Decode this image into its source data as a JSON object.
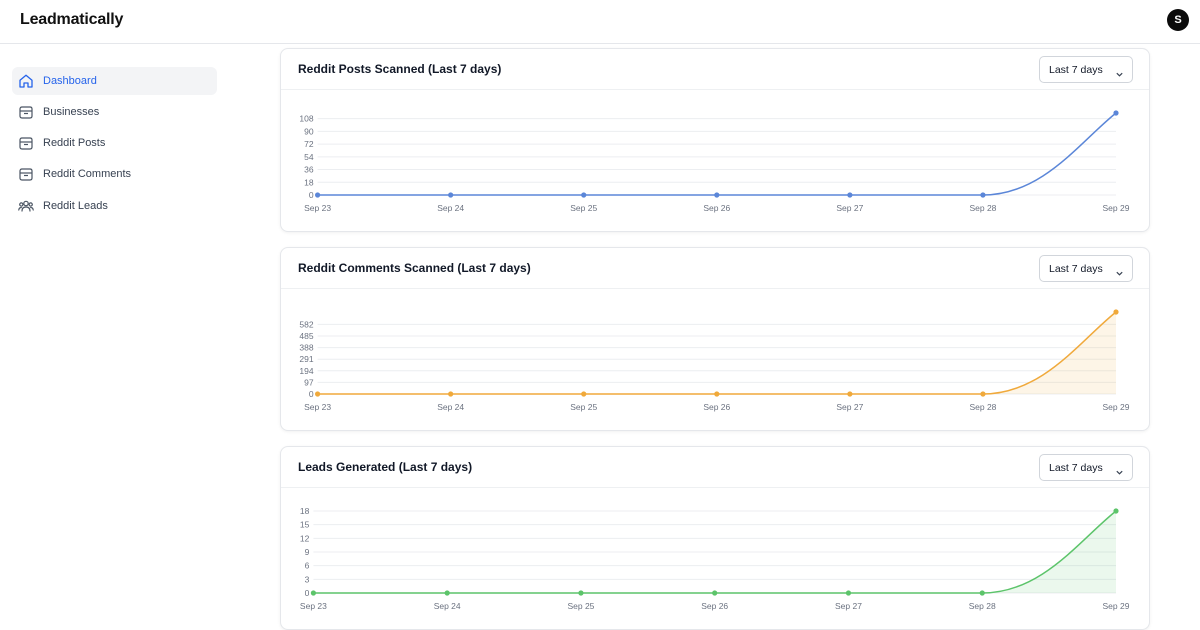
{
  "app": {
    "title": "Leadmatically",
    "avatar_initial": "S"
  },
  "sidebar": {
    "items": [
      {
        "label": "Dashboard",
        "icon": "home-icon",
        "active": true
      },
      {
        "label": "Businesses",
        "icon": "box-icon",
        "active": false
      },
      {
        "label": "Reddit Posts",
        "icon": "box-icon",
        "active": false
      },
      {
        "label": "Reddit Comments",
        "icon": "box-icon",
        "active": false
      },
      {
        "label": "Reddit Leads",
        "icon": "users-icon",
        "active": false
      }
    ]
  },
  "colors": {
    "accent": "#2563eb",
    "posts": "#5b86d8",
    "comments": "#f0a93b",
    "leads": "#5cc46a"
  },
  "cards": [
    {
      "title": "Reddit Posts Scanned (Last 7 days)",
      "range": "Last 7 days"
    },
    {
      "title": "Reddit Comments Scanned (Last 7 days)",
      "range": "Last 7 days"
    },
    {
      "title": "Leads Generated (Last 7 days)",
      "range": "Last 7 days"
    }
  ],
  "chart_data": [
    {
      "type": "line",
      "title": "Reddit Posts Scanned (Last 7 days)",
      "categories": [
        "Sep 23",
        "Sep 24",
        "Sep 25",
        "Sep 26",
        "Sep 27",
        "Sep 28",
        "Sep 29"
      ],
      "series": [
        {
          "values": [
            0,
            0,
            0,
            0,
            0,
            0,
            116
          ],
          "color": "#5b86d8"
        }
      ],
      "yticks": [
        0,
        18,
        36,
        54,
        72,
        90,
        108
      ],
      "ylim": [
        0,
        116
      ],
      "fill": false,
      "grid": true
    },
    {
      "type": "area",
      "title": "Reddit Comments Scanned (Last 7 days)",
      "categories": [
        "Sep 23",
        "Sep 24",
        "Sep 25",
        "Sep 26",
        "Sep 27",
        "Sep 28",
        "Sep 29"
      ],
      "series": [
        {
          "values": [
            0,
            0,
            0,
            0,
            0,
            0,
            686
          ],
          "color": "#f0a93b"
        }
      ],
      "yticks": [
        0,
        97,
        194,
        291,
        388,
        485,
        582
      ],
      "ylim": [
        0,
        686
      ],
      "fill": true,
      "grid": true
    },
    {
      "type": "area",
      "title": "Leads Generated (Last 7 days)",
      "categories": [
        "Sep 23",
        "Sep 24",
        "Sep 25",
        "Sep 26",
        "Sep 27",
        "Sep 28",
        "Sep 29"
      ],
      "series": [
        {
          "values": [
            0,
            0,
            0,
            0,
            0,
            0,
            18
          ],
          "color": "#5cc46a"
        }
      ],
      "yticks": [
        0,
        3,
        6,
        9,
        12,
        15,
        18
      ],
      "ylim": [
        0,
        18
      ],
      "fill": true,
      "grid": true
    }
  ]
}
